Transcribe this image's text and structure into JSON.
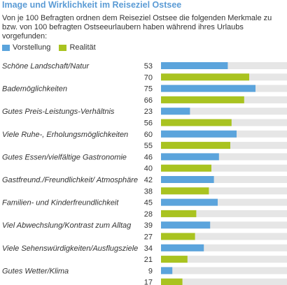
{
  "colors": {
    "title": "#5b9bd5",
    "vorstellung": "#5ba4dc",
    "realitaet": "#a9c320",
    "track": "#e6e6e6"
  },
  "header": {
    "title": "Image und Wirklichkeit im Reiseziel Ostsee",
    "subtitle": "Von je 100 Befragten ordnen dem Reiseziel Ostsee die folgenden Merkmale zu bzw. von 100 befragten Ostseeurlaubern haben während ihres Urlaubs vorgefunden:"
  },
  "legend": {
    "vorstellung": "Vorstellung",
    "realitaet": "Realität"
  },
  "chart_data": {
    "type": "bar",
    "orientation": "horizontal",
    "title": "Image und Wirklichkeit im Reiseziel Ostsee",
    "categories": [
      "Schöne Landschaft/Natur",
      "Bademöglichkeiten",
      "Gutes Preis-Leistungs-Verhältnis",
      "Viele Ruhe-, Erholungsmöglichkeiten",
      "Gutes Essen/vielfältige Gastronomie",
      "Gastfreund./Freundlichkeit/ Atmosphäre",
      "Familien- und Kinderfreundlichkeit",
      "Viel Abwechslung/Kontrast zum Alltag",
      "Viele Sehenswürdigkeiten/Ausflugsziele",
      "Gutes Wetter/Klima"
    ],
    "series": [
      {
        "name": "Vorstellung",
        "values": [
          53,
          75,
          23,
          60,
          46,
          42,
          45,
          39,
          34,
          9
        ]
      },
      {
        "name": "Realität",
        "values": [
          70,
          66,
          56,
          55,
          40,
          38,
          28,
          27,
          21,
          17
        ]
      }
    ],
    "xlim": [
      0,
      100
    ],
    "grid": false,
    "legend_position": "top-left"
  }
}
